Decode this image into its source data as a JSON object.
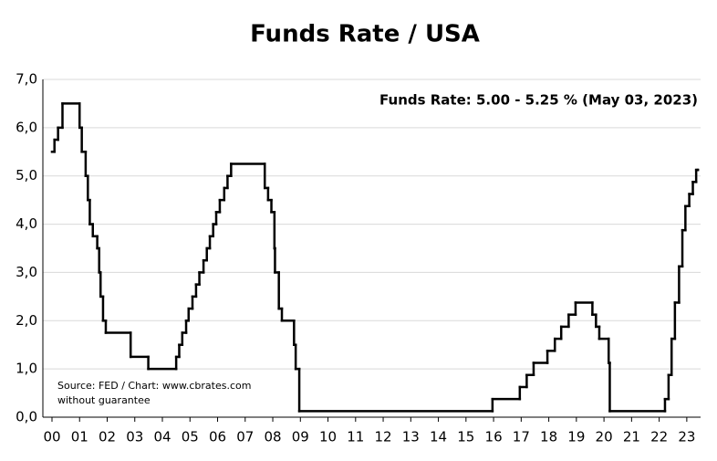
{
  "chart_data": {
    "type": "line",
    "step": "post",
    "title": "Funds Rate / USA",
    "annotation": "Funds Rate: 5.00 - 5.25 % (May 03, 2023)",
    "source": [
      "Source: FED / Chart: www.cbrates.com",
      "without guarantee"
    ],
    "x": [
      0.0,
      0.09,
      0.22,
      0.38,
      1.0,
      1.08,
      1.22,
      1.3,
      1.37,
      1.48,
      1.64,
      1.71,
      1.76,
      1.85,
      1.95,
      2.85,
      3.49,
      4.5,
      4.61,
      4.72,
      4.86,
      4.95,
      5.09,
      5.22,
      5.34,
      5.49,
      5.61,
      5.72,
      5.84,
      5.95,
      6.08,
      6.24,
      6.36,
      6.49,
      7.71,
      7.83,
      7.95,
      8.06,
      8.08,
      8.22,
      8.33,
      8.77,
      8.83,
      8.96,
      15.96,
      16.95,
      17.2,
      17.45,
      17.95,
      18.22,
      18.45,
      18.72,
      18.97,
      19.58,
      19.71,
      19.83,
      20.17,
      20.21,
      22.21,
      22.34,
      22.45,
      22.57,
      22.72,
      22.84,
      22.95,
      23.09,
      23.22,
      23.34,
      23.4
    ],
    "series": [
      {
        "name": "Funds Rate",
        "color": "#000000",
        "values": [
          5.5,
          5.75,
          6.0,
          6.5,
          6.0,
          5.5,
          5.0,
          4.5,
          4.0,
          3.75,
          3.5,
          3.0,
          2.5,
          2.0,
          1.75,
          1.25,
          1.0,
          1.25,
          1.5,
          1.75,
          2.0,
          2.25,
          2.5,
          2.75,
          3.0,
          3.25,
          3.5,
          3.75,
          4.0,
          4.25,
          4.5,
          4.75,
          5.0,
          5.25,
          4.75,
          4.5,
          4.25,
          3.5,
          3.0,
          2.25,
          2.0,
          1.5,
          1.0,
          0.125,
          0.375,
          0.625,
          0.875,
          1.125,
          1.375,
          1.625,
          1.875,
          2.125,
          2.375,
          2.125,
          1.875,
          1.625,
          1.125,
          0.125,
          0.375,
          0.875,
          1.625,
          2.375,
          3.125,
          3.875,
          4.375,
          4.625,
          4.875,
          5.125,
          5.125
        ]
      }
    ],
    "xlim": [
      -0.33,
      23.5
    ],
    "xticks": [
      {
        "value": 0,
        "label": "00"
      },
      {
        "value": 1,
        "label": "01"
      },
      {
        "value": 2,
        "label": "02"
      },
      {
        "value": 3,
        "label": "03"
      },
      {
        "value": 4,
        "label": "04"
      },
      {
        "value": 5,
        "label": "05"
      },
      {
        "value": 6,
        "label": "06"
      },
      {
        "value": 7,
        "label": "07"
      },
      {
        "value": 8,
        "label": "08"
      },
      {
        "value": 9,
        "label": "09"
      },
      {
        "value": 10,
        "label": "10"
      },
      {
        "value": 11,
        "label": "11"
      },
      {
        "value": 12,
        "label": "12"
      },
      {
        "value": 13,
        "label": "13"
      },
      {
        "value": 14,
        "label": "14"
      },
      {
        "value": 15,
        "label": "15"
      },
      {
        "value": 16,
        "label": "16"
      },
      {
        "value": 17,
        "label": "17"
      },
      {
        "value": 18,
        "label": "18"
      },
      {
        "value": 19,
        "label": "19"
      },
      {
        "value": 20,
        "label": "20"
      },
      {
        "value": 21,
        "label": "21"
      },
      {
        "value": 22,
        "label": "22"
      },
      {
        "value": 23,
        "label": "23"
      }
    ],
    "ylim": [
      0,
      7
    ],
    "yticks": [
      {
        "value": 0,
        "label": "0,0"
      },
      {
        "value": 1,
        "label": "1,0"
      },
      {
        "value": 2,
        "label": "2,0"
      },
      {
        "value": 3,
        "label": "3,0"
      },
      {
        "value": 4,
        "label": "4,0"
      },
      {
        "value": 5,
        "label": "5,0"
      },
      {
        "value": 6,
        "label": "6,0"
      },
      {
        "value": 7,
        "label": "7,0"
      }
    ],
    "grid": true
  }
}
